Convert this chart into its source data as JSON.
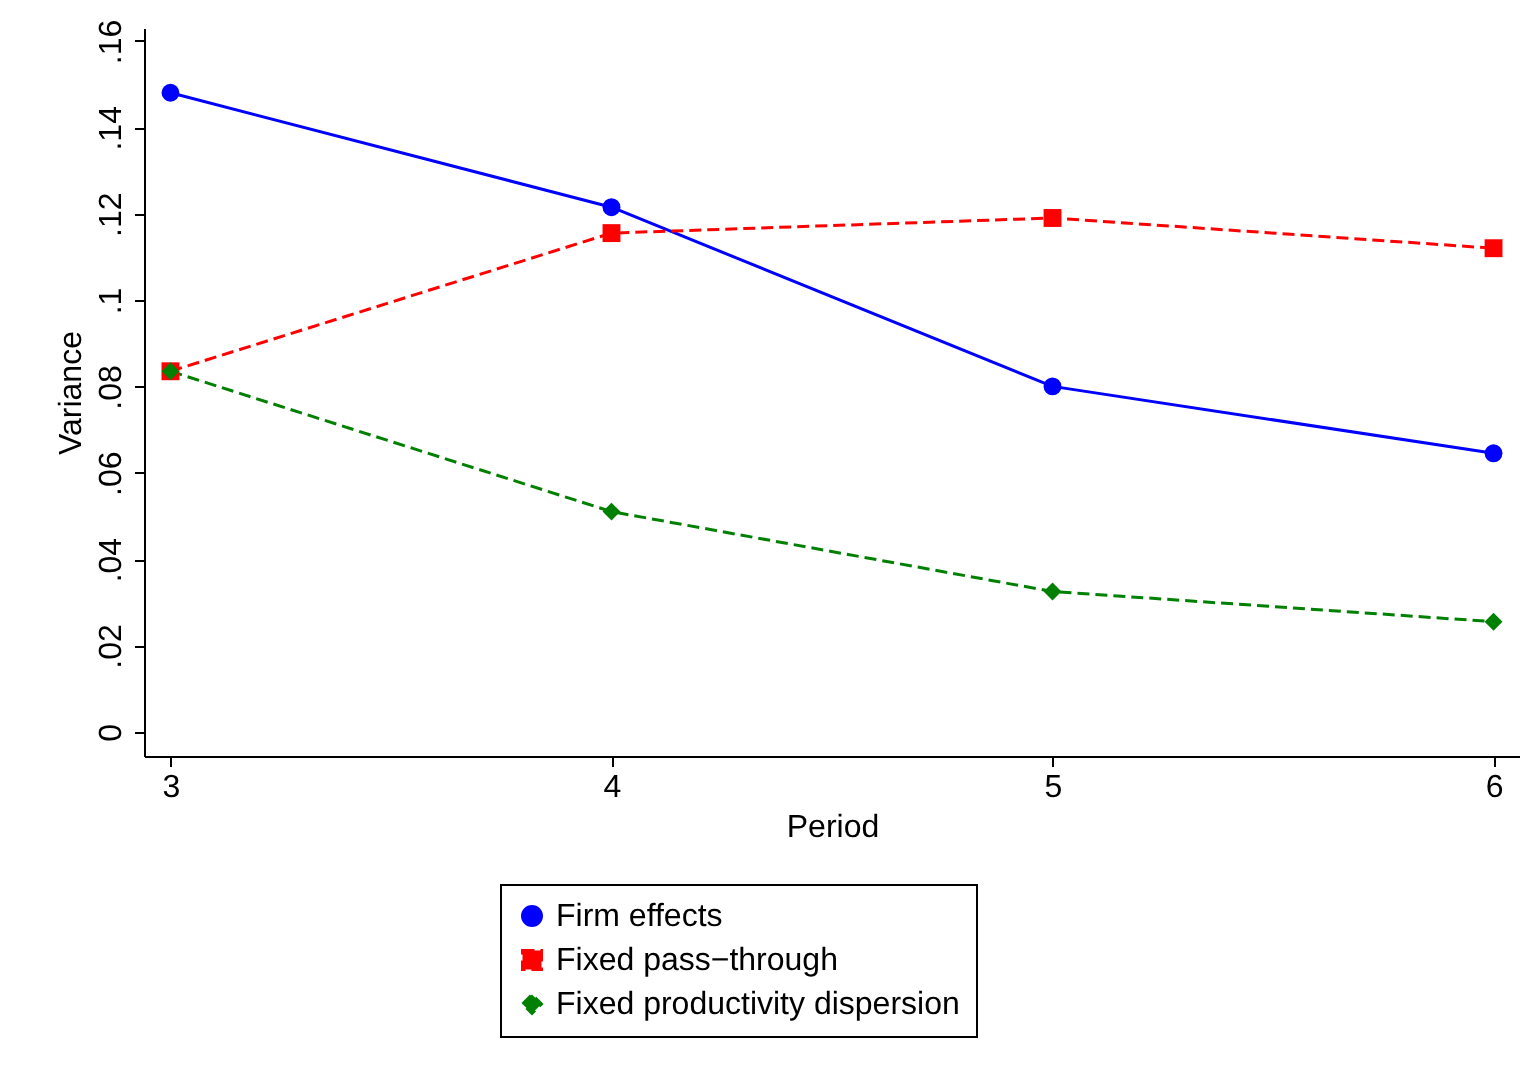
{
  "chart_data": {
    "type": "line",
    "xlabel": "Period",
    "ylabel": "Variance",
    "x": [
      3,
      4,
      5,
      6
    ],
    "series": [
      {
        "name": "Firm effects",
        "color": "#0000ff",
        "values": [
          0.148,
          0.1215,
          0.08,
          0.0645
        ],
        "marker": "circle",
        "line_style": "solid"
      },
      {
        "name": "Fixed pass−through",
        "color": "#ff0000",
        "values": [
          0.0835,
          0.1155,
          0.119,
          0.112
        ],
        "marker": "square",
        "line_style": "dashed"
      },
      {
        "name": "Fixed productivity dispersion",
        "color": "#008000",
        "values": [
          0.0835,
          0.051,
          0.0325,
          0.0255
        ],
        "marker": "diamond",
        "line_style": "dashed"
      }
    ],
    "xlim": [
      2.94,
      6.06
    ],
    "xticks": [
      3,
      4,
      5,
      6
    ],
    "ylim": [
      -0.0056,
      0.163
    ],
    "yticks": [
      {
        "value": 0,
        "label": "0"
      },
      {
        "value": 0.02,
        "label": ".02"
      },
      {
        "value": 0.04,
        "label": ".04"
      },
      {
        "value": 0.06,
        "label": ".06"
      },
      {
        "value": 0.08,
        "label": ".08"
      },
      {
        "value": 0.1,
        "label": ".1"
      },
      {
        "value": 0.12,
        "label": ".12"
      },
      {
        "value": 0.14,
        "label": ".14"
      },
      {
        "value": 0.16,
        "label": ".16"
      }
    ],
    "grid": false,
    "legend": "bottom"
  }
}
